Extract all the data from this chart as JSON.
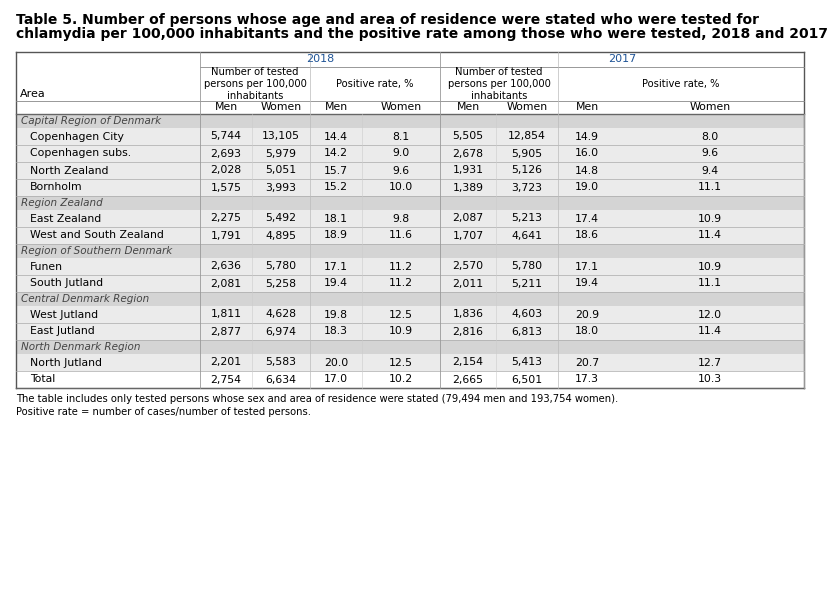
{
  "title_line1": "Table 5. Number of persons whose age and area of residence were stated who were tested for",
  "title_line2": "chlamydia per 100,000 inhabitants and the positive rate among those who were tested, 2018 and 2017",
  "footnote": "The table includes only tested persons whose sex and area of residence were stated (79,494 men and 193,754 women).\nPositive rate = number of cases/number of tested persons.",
  "header_2018": "2018",
  "header_2017": "2017",
  "sub_header1": "Number of tested\npersons per 100,000\ninhabitants",
  "sub_header2": "Positive rate, %",
  "col_men": "Men",
  "col_women": "Women",
  "col_area": "Area",
  "data_rows": [
    {
      "area": "Capital Region of Denmark",
      "is_region": true,
      "vals": null
    },
    {
      "area": "Copenhagen City",
      "is_region": false,
      "vals": [
        "5,744",
        "13,105",
        "14.4",
        "8.1",
        "5,505",
        "12,854",
        "14.9",
        "8.0"
      ]
    },
    {
      "area": "Copenhagen subs.",
      "is_region": false,
      "vals": [
        "2,693",
        "5,979",
        "14.2",
        "9.0",
        "2,678",
        "5,905",
        "16.0",
        "9.6"
      ]
    },
    {
      "area": "North Zealand",
      "is_region": false,
      "vals": [
        "2,028",
        "5,051",
        "15.7",
        "9.6",
        "1,931",
        "5,126",
        "14.8",
        "9.4"
      ]
    },
    {
      "area": "Bornholm",
      "is_region": false,
      "vals": [
        "1,575",
        "3,993",
        "15.2",
        "10.0",
        "1,389",
        "3,723",
        "19.0",
        "11.1"
      ]
    },
    {
      "area": "Region Zealand",
      "is_region": true,
      "vals": null
    },
    {
      "area": "East Zealand",
      "is_region": false,
      "vals": [
        "2,275",
        "5,492",
        "18.1",
        "9.8",
        "2,087",
        "5,213",
        "17.4",
        "10.9"
      ]
    },
    {
      "area": "West and South Zealand",
      "is_region": false,
      "vals": [
        "1,791",
        "4,895",
        "18.9",
        "11.6",
        "1,707",
        "4,641",
        "18.6",
        "11.4"
      ]
    },
    {
      "area": "Region of Southern Denmark",
      "is_region": true,
      "vals": null
    },
    {
      "area": "Funen",
      "is_region": false,
      "vals": [
        "2,636",
        "5,780",
        "17.1",
        "11.2",
        "2,570",
        "5,780",
        "17.1",
        "10.9"
      ]
    },
    {
      "area": "South Jutland",
      "is_region": false,
      "vals": [
        "2,081",
        "5,258",
        "19.4",
        "11.2",
        "2,011",
        "5,211",
        "19.4",
        "11.1"
      ]
    },
    {
      "area": "Central Denmark Region",
      "is_region": true,
      "vals": null
    },
    {
      "area": "West Jutland",
      "is_region": false,
      "vals": [
        "1,811",
        "4,628",
        "19.8",
        "12.5",
        "1,836",
        "4,603",
        "20.9",
        "12.0"
      ]
    },
    {
      "area": "East Jutland",
      "is_region": false,
      "vals": [
        "2,877",
        "6,974",
        "18.3",
        "10.9",
        "2,816",
        "6,813",
        "18.0",
        "11.4"
      ]
    },
    {
      "area": "North Denmark Region",
      "is_region": true,
      "vals": null
    },
    {
      "area": "North Jutland",
      "is_region": false,
      "vals": [
        "2,201",
        "5,583",
        "20.0",
        "12.5",
        "2,154",
        "5,413",
        "20.7",
        "12.7"
      ]
    },
    {
      "area": "Total",
      "is_region": false,
      "is_total": true,
      "vals": [
        "2,754",
        "6,634",
        "17.0",
        "10.2",
        "2,665",
        "6,501",
        "17.3",
        "10.3"
      ]
    }
  ],
  "bg_color": "#ffffff",
  "region_bg": "#d4d4d4",
  "data_bg": "#ebebeb",
  "total_bg": "#ffffff",
  "header_year_color": "#1f5496",
  "text_color": "#000000",
  "region_text_color": "#444444"
}
